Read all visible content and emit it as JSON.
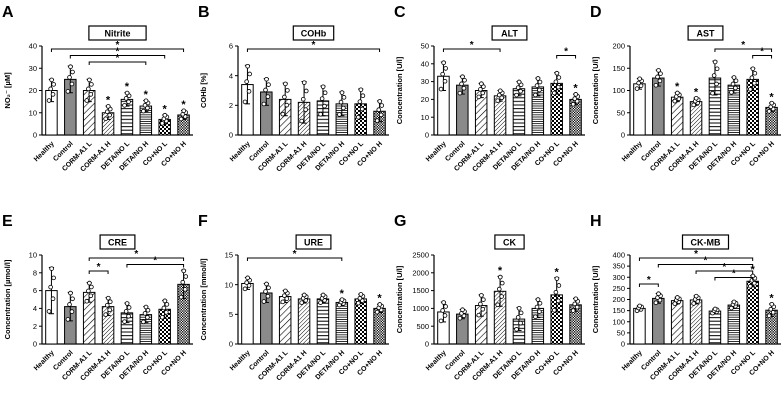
{
  "figure": {
    "background": "#ffffff",
    "bar_gray": "#8a8a8a",
    "sig_symbol": "*",
    "bar_patterns": [
      "open",
      "solid-gray",
      "diag-hatch",
      "diag-hatch-dense",
      "horiz-lines",
      "horiz-lines-dense",
      "checker",
      "checker-dense"
    ],
    "group_labels": [
      "Healthy",
      "Control",
      "CORM-A1 L",
      "CORM-A1 H",
      "DETA/NO L",
      "DETA/NO H",
      "CO+NO L",
      "CO+NO H"
    ]
  },
  "chart_data": [
    {
      "type": "bar",
      "panel_letter": "A",
      "title": "Nitrite",
      "ylabel": "NO₂⁻ [µM]",
      "ylim": [
        0,
        40
      ],
      "ytick_step": 10,
      "categories": [
        "Healthy",
        "Control",
        "CORM-A1 L",
        "CORM-A1 H",
        "DETA/NO L",
        "DETA/NO H",
        "CO+NO L",
        "CO+NO H"
      ],
      "means": [
        20,
        25,
        20,
        10,
        16,
        13,
        7,
        9
      ],
      "sd": [
        5,
        6,
        5,
        3,
        3,
        2.5,
        2,
        2
      ],
      "star_bars": [
        3,
        4,
        5,
        6,
        7
      ],
      "sig_brackets": [
        {
          "from": 0,
          "to": 7,
          "row": 0,
          "label": "*"
        },
        {
          "from": 1,
          "to": 6,
          "row": 1,
          "label": "*"
        },
        {
          "from": 2,
          "to": 5,
          "row": 2,
          "label": "*"
        }
      ]
    },
    {
      "type": "bar",
      "panel_letter": "B",
      "title": "COHb",
      "ylabel": "COHb [%]",
      "ylim": [
        0,
        6
      ],
      "ytick_step": 2,
      "categories": [
        "Healthy",
        "Control",
        "CORM-A1 L",
        "CORM-A1 H",
        "DETA/NO L",
        "DETA/NO H",
        "CO+NO L",
        "CO+NO H"
      ],
      "means": [
        3.4,
        2.9,
        2.4,
        2.2,
        2.3,
        2.1,
        2.1,
        1.6
      ],
      "sd": [
        1.3,
        0.9,
        1.1,
        1.4,
        1.0,
        0.8,
        1.0,
        0.7
      ],
      "star_bars": [],
      "sig_brackets": [
        {
          "from": 0,
          "to": 7,
          "row": 0,
          "label": "*"
        }
      ]
    },
    {
      "type": "bar",
      "panel_letter": "C",
      "title": "ALT",
      "ylabel": "Concentration [U/l]",
      "ylim": [
        0,
        50
      ],
      "ytick_step": 10,
      "categories": [
        "Healthy",
        "Control",
        "CORM-A1 L",
        "CORM-A1 H",
        "DETA/NO L",
        "DETA/NO H",
        "CO+NO L",
        "CO+NO H"
      ],
      "means": [
        33,
        28,
        25,
        22,
        26,
        27,
        29,
        20
      ],
      "sd": [
        8,
        5,
        4,
        3,
        4,
        5,
        6,
        3
      ],
      "star_bars": [
        7
      ],
      "sig_brackets": [
        {
          "from": 0,
          "to": 3,
          "row": 0,
          "label": "*"
        },
        {
          "from": 6,
          "to": 7,
          "row": 1,
          "label": "*"
        }
      ]
    },
    {
      "type": "bar",
      "panel_letter": "D",
      "title": "AST",
      "ylabel": "Concentration [U/l]",
      "ylim": [
        0,
        200
      ],
      "ytick_step": 50,
      "categories": [
        "Healthy",
        "Control",
        "CORM-A1 L",
        "CORM-A1 H",
        "DETA/NO L",
        "DETA/NO H",
        "CO+NO L",
        "CO+NO H"
      ],
      "means": [
        115,
        128,
        85,
        75,
        128,
        112,
        125,
        62
      ],
      "sd": [
        12,
        18,
        10,
        8,
        38,
        18,
        25,
        10
      ],
      "star_bars": [
        2,
        3,
        7
      ],
      "sig_brackets": [
        {
          "from": 4,
          "to": 7,
          "row": 0,
          "label": "*"
        },
        {
          "from": 6,
          "to": 7,
          "row": 1,
          "label": "*"
        }
      ]
    },
    {
      "type": "bar",
      "panel_letter": "E",
      "title": "CRE",
      "ylabel": "Concentration [µmol/l]",
      "ylim": [
        0,
        10
      ],
      "ytick_step": 2,
      "categories": [
        "Healthy",
        "Control",
        "CORM-A1 L",
        "CORM-A1 H",
        "DETA/NO L",
        "DETA/NO H",
        "CO+NO L",
        "CO+NO H"
      ],
      "means": [
        6.0,
        4.2,
        5.8,
        4.2,
        3.5,
        3.3,
        3.9,
        6.7
      ],
      "sd": [
        2.6,
        1.6,
        1.1,
        1.0,
        1.1,
        0.9,
        1.0,
        1.6
      ],
      "star_bars": [],
      "sig_brackets": [
        {
          "from": 2,
          "to": 7,
          "row": 0,
          "label": "*"
        },
        {
          "from": 4,
          "to": 7,
          "row": 1,
          "label": "*"
        },
        {
          "from": 2,
          "to": 3,
          "row": 2,
          "label": "*"
        }
      ]
    },
    {
      "type": "bar",
      "panel_letter": "F",
      "title": "URE",
      "ylabel": "Concentration [mmol/l]",
      "ylim": [
        0,
        15
      ],
      "ytick_step": 5,
      "categories": [
        "Healthy",
        "Control",
        "CORM-A1 L",
        "CORM-A1 H",
        "DETA/NO L",
        "DETA/NO H",
        "CO+NO L",
        "CO+NO H"
      ],
      "means": [
        10.2,
        8.6,
        8.0,
        7.6,
        7.6,
        7.0,
        7.6,
        6.0
      ],
      "sd": [
        1.0,
        1.6,
        1.0,
        0.7,
        0.7,
        0.5,
        0.8,
        0.7
      ],
      "star_bars": [
        5,
        7
      ],
      "sig_brackets": [
        {
          "from": 0,
          "to": 5,
          "row": 0,
          "label": "*"
        }
      ]
    },
    {
      "type": "bar",
      "panel_letter": "G",
      "title": "CK",
      "ylabel": "Concentration [U/l]",
      "ylim": [
        0,
        2500
      ],
      "ytick_step": 500,
      "categories": [
        "Healthy",
        "Control",
        "CORM-A1 L",
        "CORM-A1 H",
        "DETA/NO L",
        "DETA/NO H",
        "CO+NO L",
        "CO+NO H"
      ],
      "means": [
        900,
        840,
        1080,
        1480,
        700,
        1000,
        1380,
        1100
      ],
      "sd": [
        280,
        130,
        300,
        420,
        320,
        260,
        480,
        180
      ],
      "star_bars": [
        3,
        6
      ],
      "sig_brackets": []
    },
    {
      "type": "bar",
      "panel_letter": "H",
      "title": "CK-MB",
      "ylabel": "Concentration [U/l]",
      "ylim": [
        0,
        400
      ],
      "ytick_step": 50,
      "categories": [
        "Healthy",
        "Control",
        "CORM-A1 L",
        "CORM-A1 H",
        "DETA/NO L",
        "DETA/NO H",
        "CO+NO L",
        "CO+NO H"
      ],
      "means": [
        160,
        205,
        195,
        198,
        148,
        175,
        282,
        152
      ],
      "sd": [
        12,
        22,
        15,
        18,
        10,
        15,
        25,
        28
      ],
      "star_bars": [
        6,
        7
      ],
      "sig_brackets": [
        {
          "from": 0,
          "to": 6,
          "row": 0,
          "label": "*"
        },
        {
          "from": 1,
          "to": 6,
          "row": 1,
          "label": "*"
        },
        {
          "from": 3,
          "to": 6,
          "row": 2,
          "label": "*"
        },
        {
          "from": 4,
          "to": 6,
          "row": 3,
          "label": "*"
        },
        {
          "from": 0,
          "to": 1,
          "row": 4,
          "label": "*"
        }
      ]
    }
  ]
}
